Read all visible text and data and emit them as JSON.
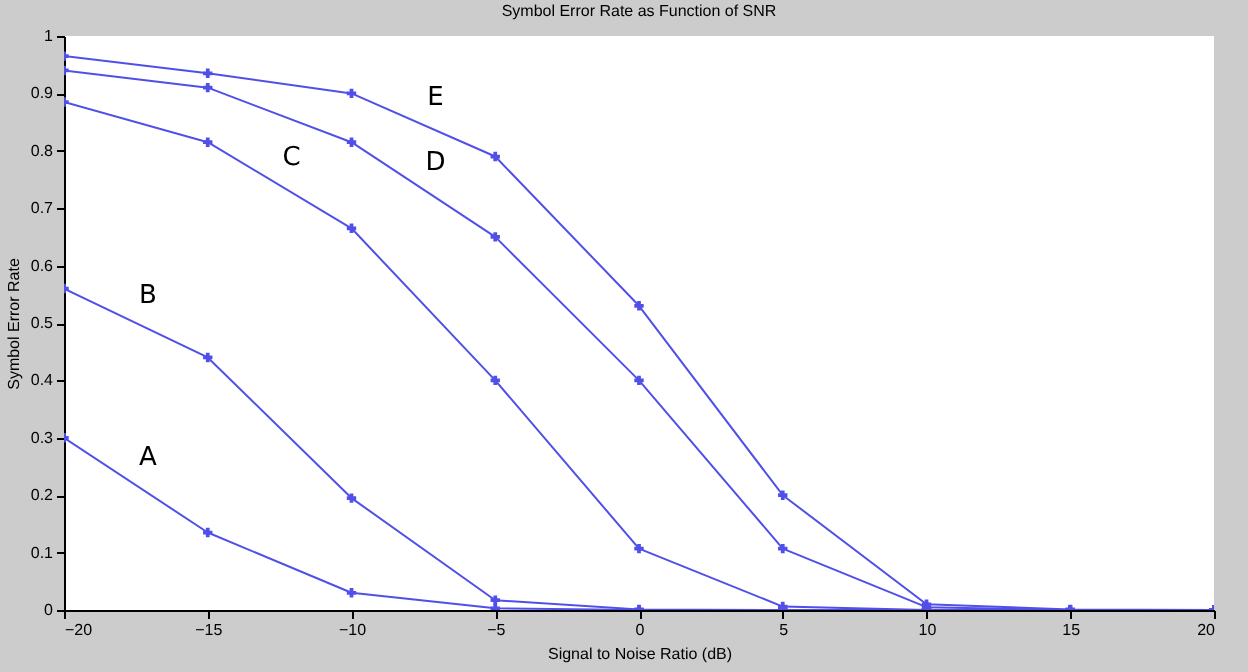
{
  "chart_data": {
    "type": "line",
    "title": "Symbol Error Rate as Function of SNR",
    "xlabel": "Signal to Noise Ratio (dB)",
    "ylabel": "Symbol Error Rate",
    "x": [
      -20,
      -15,
      -10,
      -5,
      0,
      5,
      10,
      15,
      20
    ],
    "series": [
      {
        "name": "A",
        "color": "#5050e8",
        "values": [
          0.3,
          0.135,
          0.03,
          0.003,
          0,
          0,
          0,
          0,
          0
        ]
      },
      {
        "name": "B",
        "color": "#5050e8",
        "values": [
          0.56,
          0.44,
          0.195,
          0.017,
          0.001,
          0,
          0,
          0,
          0
        ]
      },
      {
        "name": "C",
        "color": "#5050e8",
        "values": [
          0.885,
          0.815,
          0.665,
          0.4,
          0.107,
          0.006,
          0,
          0,
          0
        ]
      },
      {
        "name": "D",
        "color": "#5050e8",
        "values": [
          0.94,
          0.91,
          0.815,
          0.65,
          0.4,
          0.107,
          0.005,
          0,
          0
        ]
      },
      {
        "name": "E",
        "color": "#5050e8",
        "values": [
          0.965,
          0.935,
          0.9,
          0.79,
          0.53,
          0.2,
          0.01,
          0.001,
          0
        ]
      }
    ],
    "xlim": [
      -20,
      20
    ],
    "xticks": [
      -20,
      -15,
      -10,
      -5,
      0,
      5,
      10,
      15,
      20
    ],
    "ylim": [
      0,
      1
    ],
    "yticks": [
      0,
      0.1,
      0.2,
      0.3,
      0.4,
      0.5,
      0.6,
      0.7,
      0.8,
      0.9,
      1
    ],
    "marker": "cross",
    "grid": false,
    "legend": false
  }
}
